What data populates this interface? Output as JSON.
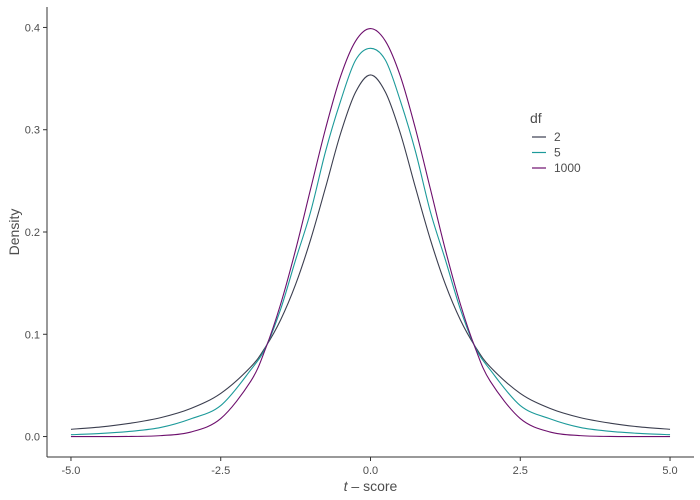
{
  "chart_data": {
    "type": "line",
    "xlabel_italic": "t",
    "xlabel_rest": " – score",
    "ylabel": "Density",
    "xlim": [
      -5.4,
      5.4
    ],
    "ylim": [
      -0.02,
      0.42
    ],
    "x_ticks": [
      -5.0,
      -2.5,
      0.0,
      2.5,
      5.0
    ],
    "x_tick_labels": [
      "-5.0",
      "-2.5",
      "0.0",
      "2.5",
      "5.0"
    ],
    "y_ticks": [
      0.0,
      0.1,
      0.2,
      0.3,
      0.4
    ],
    "y_tick_labels": [
      "0.0",
      "0.1",
      "0.2",
      "0.3",
      "0.4"
    ],
    "grid": false,
    "legend": {
      "title": "df",
      "placement": "right-inside",
      "entries": [
        "2",
        "5",
        "1000"
      ]
    },
    "x": [
      -5.0,
      -4.5,
      -4.0,
      -3.5,
      -3.0,
      -2.5,
      -2.0,
      -1.75,
      -1.5,
      -1.25,
      -1.0,
      -0.75,
      -0.5,
      -0.25,
      0.0,
      0.25,
      0.5,
      0.75,
      1.0,
      1.25,
      1.5,
      1.75,
      2.0,
      2.5,
      3.0,
      3.5,
      4.0,
      4.5,
      5.0
    ],
    "series": [
      {
        "name": "2",
        "color": "#3b3e4f",
        "values": [
          0.0071,
          0.0094,
          0.0131,
          0.0185,
          0.0274,
          0.0422,
          0.068,
          0.0878,
          0.1141,
          0.1488,
          0.1925,
          0.2436,
          0.2962,
          0.3366,
          0.3536,
          0.3366,
          0.2962,
          0.2436,
          0.1925,
          0.1488,
          0.1141,
          0.0878,
          0.068,
          0.0422,
          0.0274,
          0.0185,
          0.0131,
          0.0094,
          0.0071
        ]
      },
      {
        "name": "5",
        "color": "#1c9a9a",
        "values": [
          0.0018,
          0.003,
          0.0051,
          0.0089,
          0.0173,
          0.0303,
          0.0651,
          0.0871,
          0.1245,
          0.1728,
          0.2197,
          0.2789,
          0.3279,
          0.3679,
          0.3796,
          0.3679,
          0.3279,
          0.2789,
          0.2197,
          0.1728,
          0.1245,
          0.0871,
          0.0651,
          0.0303,
          0.0173,
          0.0089,
          0.0051,
          0.003,
          0.0018
        ]
      },
      {
        "name": "1000",
        "color": "#6d0f6d",
        "values": [
          0.0,
          0.0,
          0.0001,
          0.0009,
          0.0044,
          0.0176,
          0.054,
          0.0863,
          0.1295,
          0.1826,
          0.242,
          0.3011,
          0.3521,
          0.3866,
          0.3989,
          0.3866,
          0.3521,
          0.3011,
          0.242,
          0.1826,
          0.1295,
          0.0863,
          0.054,
          0.0176,
          0.0044,
          0.0009,
          0.0001,
          0.0,
          0.0
        ]
      }
    ]
  }
}
